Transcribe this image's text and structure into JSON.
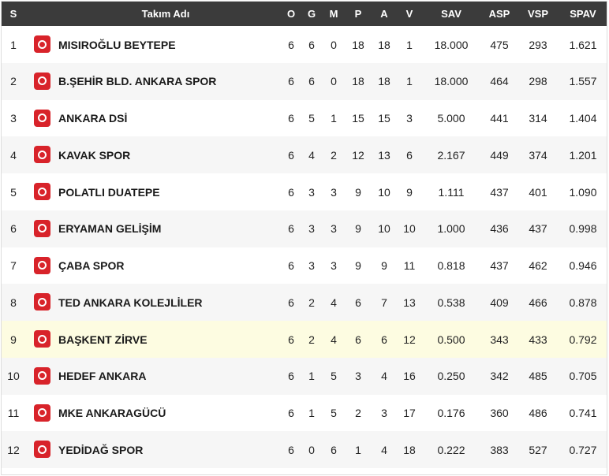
{
  "header": {
    "rank": "S",
    "team": "Takım Adı",
    "o": "O",
    "g": "G",
    "m": "M",
    "p": "P",
    "a": "A",
    "v": "V",
    "sav": "SAV",
    "asp": "ASP",
    "vsp": "VSP",
    "spav": "SPAV"
  },
  "colors": {
    "header_bg": "#3b3b3b",
    "highlight_row": "#fdfce1",
    "logo": "#d8232a"
  },
  "highlighted_rank": 9,
  "rows": [
    {
      "rank": "1",
      "team": "MISIROĞLU BEYTEPE",
      "o": "6",
      "g": "6",
      "m": "0",
      "p": "18",
      "a": "18",
      "v": "1",
      "sav": "18.000",
      "asp": "475",
      "vsp": "293",
      "spav": "1.621"
    },
    {
      "rank": "2",
      "team": "B.ŞEHİR BLD. ANKARA SPOR",
      "o": "6",
      "g": "6",
      "m": "0",
      "p": "18",
      "a": "18",
      "v": "1",
      "sav": "18.000",
      "asp": "464",
      "vsp": "298",
      "spav": "1.557"
    },
    {
      "rank": "3",
      "team": "ANKARA DSİ",
      "o": "6",
      "g": "5",
      "m": "1",
      "p": "15",
      "a": "15",
      "v": "3",
      "sav": "5.000",
      "asp": "441",
      "vsp": "314",
      "spav": "1.404"
    },
    {
      "rank": "4",
      "team": "KAVAK SPOR",
      "o": "6",
      "g": "4",
      "m": "2",
      "p": "12",
      "a": "13",
      "v": "6",
      "sav": "2.167",
      "asp": "449",
      "vsp": "374",
      "spav": "1.201"
    },
    {
      "rank": "5",
      "team": "POLATLI DUATEPE",
      "o": "6",
      "g": "3",
      "m": "3",
      "p": "9",
      "a": "10",
      "v": "9",
      "sav": "1.111",
      "asp": "437",
      "vsp": "401",
      "spav": "1.090"
    },
    {
      "rank": "6",
      "team": "ERYAMAN GELİŞİM",
      "o": "6",
      "g": "3",
      "m": "3",
      "p": "9",
      "a": "10",
      "v": "10",
      "sav": "1.000",
      "asp": "436",
      "vsp": "437",
      "spav": "0.998"
    },
    {
      "rank": "7",
      "team": "ÇABA SPOR",
      "o": "6",
      "g": "3",
      "m": "3",
      "p": "9",
      "a": "9",
      "v": "11",
      "sav": "0.818",
      "asp": "437",
      "vsp": "462",
      "spav": "0.946"
    },
    {
      "rank": "8",
      "team": "TED ANKARA KOLEJLİLER",
      "o": "6",
      "g": "2",
      "m": "4",
      "p": "6",
      "a": "7",
      "v": "13",
      "sav": "0.538",
      "asp": "409",
      "vsp": "466",
      "spav": "0.878"
    },
    {
      "rank": "9",
      "team": "BAŞKENT ZİRVE",
      "o": "6",
      "g": "2",
      "m": "4",
      "p": "6",
      "a": "6",
      "v": "12",
      "sav": "0.500",
      "asp": "343",
      "vsp": "433",
      "spav": "0.792"
    },
    {
      "rank": "10",
      "team": "HEDEF ANKARA",
      "o": "6",
      "g": "1",
      "m": "5",
      "p": "3",
      "a": "4",
      "v": "16",
      "sav": "0.250",
      "asp": "342",
      "vsp": "485",
      "spav": "0.705"
    },
    {
      "rank": "11",
      "team": "MKE ANKARAGÜCÜ",
      "o": "6",
      "g": "1",
      "m": "5",
      "p": "2",
      "a": "3",
      "v": "17",
      "sav": "0.176",
      "asp": "360",
      "vsp": "486",
      "spav": "0.741"
    },
    {
      "rank": "12",
      "team": "YEDİDAĞ SPOR",
      "o": "6",
      "g": "0",
      "m": "6",
      "p": "1",
      "a": "4",
      "v": "18",
      "sav": "0.222",
      "asp": "383",
      "vsp": "527",
      "spav": "0.727"
    }
  ]
}
